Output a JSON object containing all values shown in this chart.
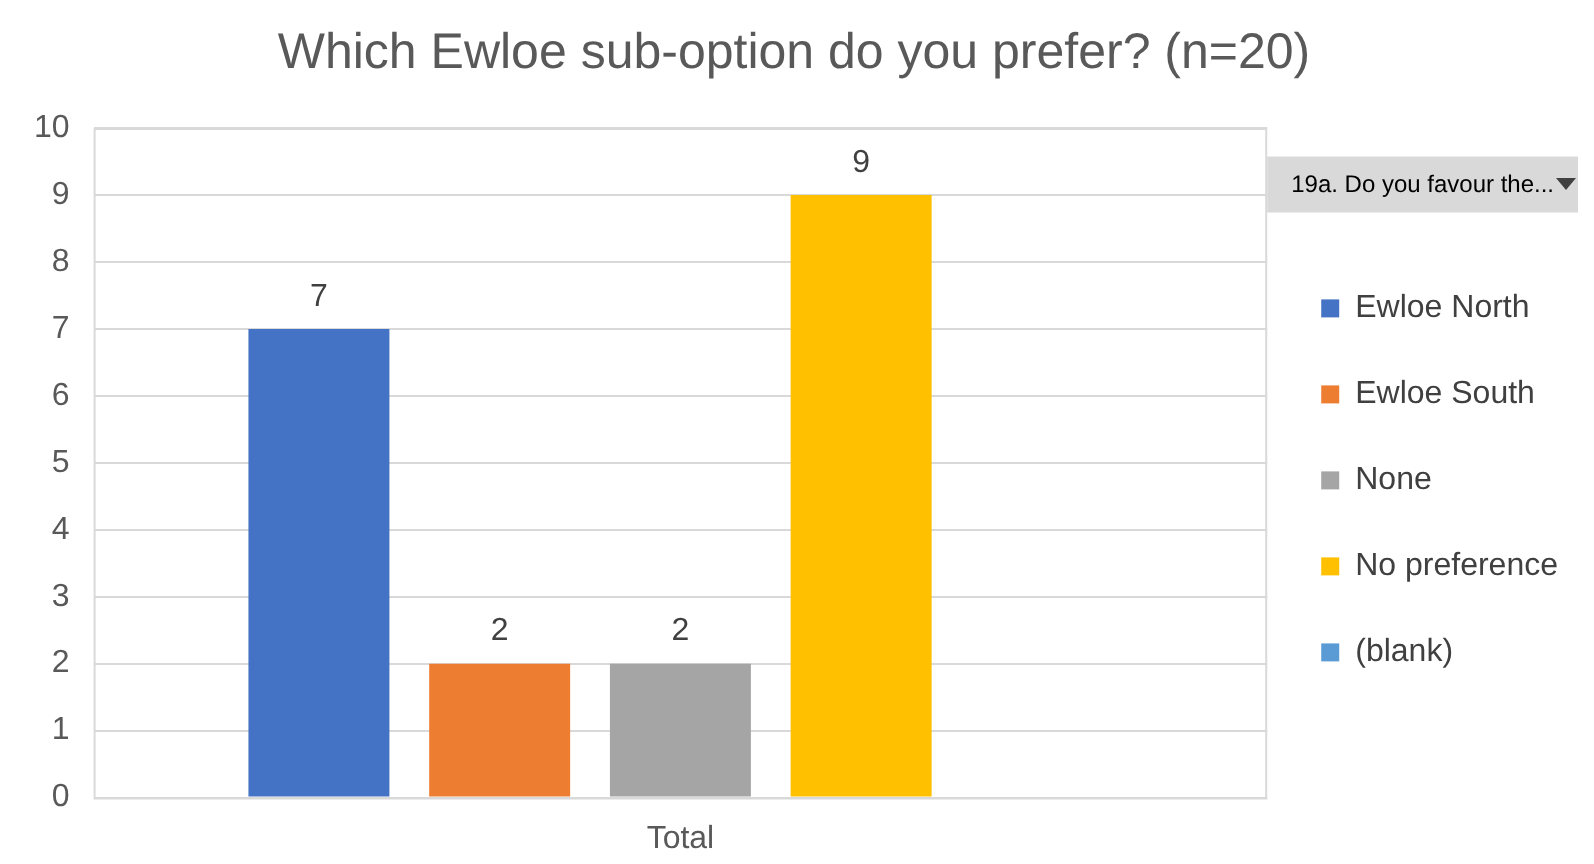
{
  "chart_data": {
    "type": "bar",
    "title": "Which Ewloe sub-option do you prefer? (n=20)",
    "legend_title": "19a. Do you favour the...",
    "categories": [
      "Total"
    ],
    "series": [
      {
        "name": "Ewloe North",
        "color": "#4472c4",
        "values": [
          7
        ]
      },
      {
        "name": "Ewloe South",
        "color": "#ed7d31",
        "values": [
          2
        ]
      },
      {
        "name": "None",
        "color": "#a5a5a5",
        "values": [
          2
        ]
      },
      {
        "name": "No preference",
        "color": "#ffc000",
        "values": [
          9
        ]
      },
      {
        "name": "(blank)",
        "color": "#5b9bd5",
        "values": [
          null
        ]
      }
    ],
    "ylim": [
      0,
      10
    ],
    "yticks": [
      0,
      1,
      2,
      3,
      4,
      5,
      6,
      7,
      8,
      9,
      10
    ],
    "grid": "y",
    "legend": "right",
    "data_labels": true
  }
}
